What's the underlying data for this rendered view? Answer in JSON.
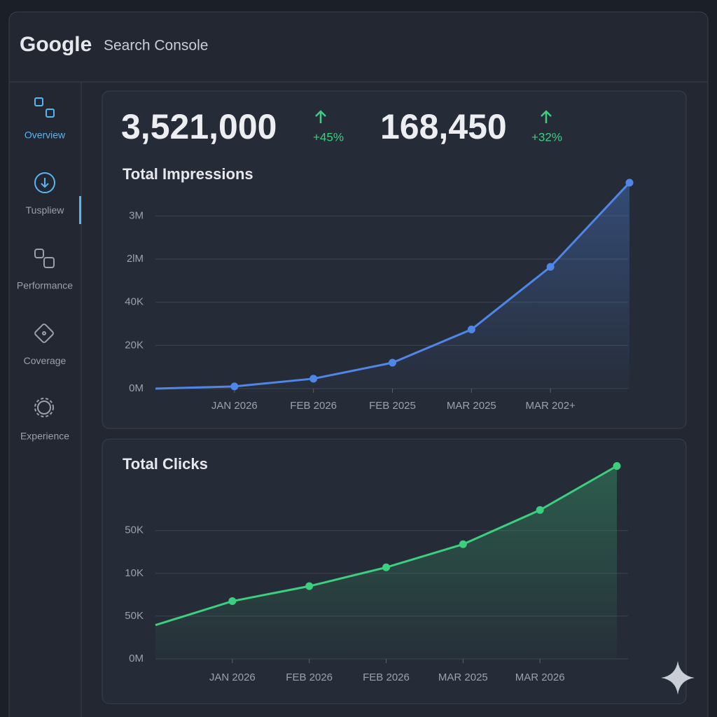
{
  "header": {
    "logo": "Google",
    "product": "Search Console"
  },
  "nav": [
    "Overview",
    "Tuspliew",
    "Performance",
    "Coverage",
    "Experience"
  ],
  "stats": [
    {
      "value": "3,521,000",
      "change": "+45%"
    },
    {
      "value": "168,450",
      "change": "+32%"
    }
  ],
  "chart_data": [
    {
      "type": "line",
      "title": "Total Impressions",
      "categories": [
        null,
        "JAN 2026",
        "FEB 2026",
        "FEB 2025",
        "MAR 2025",
        "MAR 202+",
        null
      ],
      "values": [
        0,
        0.05,
        0.23,
        0.6,
        1.37,
        2.82,
        4.77
      ],
      "color": "#4f86e8",
      "ylim": [
        0,
        4.8
      ],
      "yticks": [
        {
          "value": 0,
          "label": "0M"
        },
        {
          "value": 1,
          "label": "20K"
        },
        {
          "value": 2,
          "label": "40K"
        },
        {
          "value": 3,
          "label": "2lM"
        },
        {
          "value": 4,
          "label": "3M"
        }
      ],
      "grid": true
    },
    {
      "type": "line",
      "title": "Total Clicks",
      "categories": [
        null,
        "JAN 2026",
        "FEB 2026",
        "FEB 2026",
        "MAR 2025",
        "MAR 2026",
        null
      ],
      "values": [
        0.79,
        1.35,
        1.7,
        2.14,
        2.68,
        3.48,
        4.51
      ],
      "color": "#3ccf7f",
      "ylim": [
        0,
        4.6
      ],
      "yticks": [
        {
          "value": 0,
          "label": "0M"
        },
        {
          "value": 1,
          "label": "50K"
        },
        {
          "value": 2,
          "label": "10K"
        },
        {
          "value": 3,
          "label": "50K"
        }
      ],
      "grid": true
    }
  ]
}
